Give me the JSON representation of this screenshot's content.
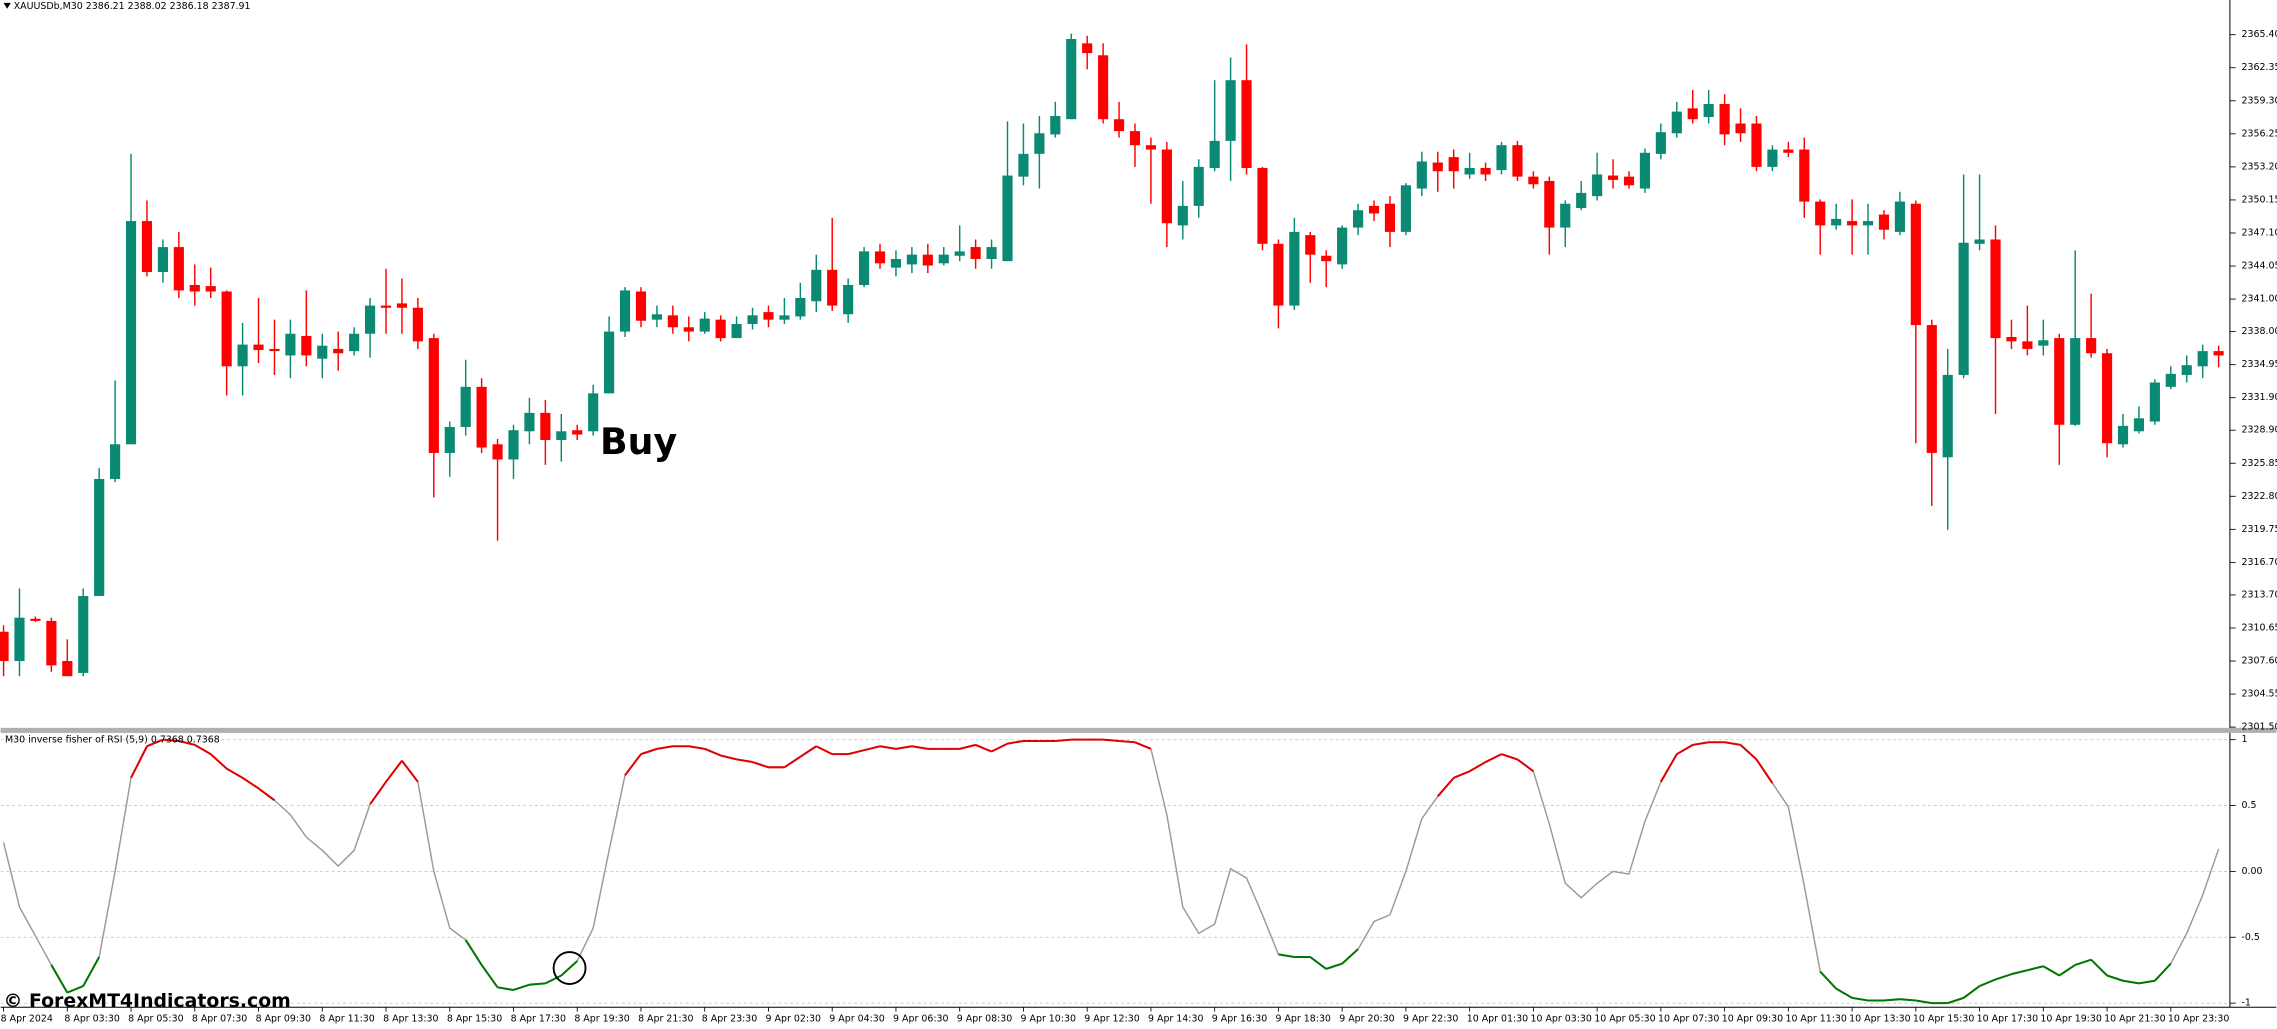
{
  "chart_data": [
    {
      "type": "candlestick",
      "title": "XAUUSDb,M30  2386.21 2388.02 2386.18 2387.91",
      "annotation": "Buy",
      "up_color": "#0a8a72",
      "down_color": "#ff0000",
      "categories": [
        "8 Apr 2024",
        null,
        null,
        null,
        "8 Apr 03:30",
        null,
        null,
        null,
        "8 Apr 05:30",
        null,
        null,
        null,
        "8 Apr 07:30",
        null,
        null,
        null,
        "8 Apr 09:30",
        null,
        null,
        null,
        "8 Apr 11:30",
        null,
        null,
        null,
        "8 Apr 13:30",
        null,
        null,
        null,
        "8 Apr 15:30",
        null,
        null,
        null,
        "8 Apr 17:30",
        null,
        null,
        null,
        "8 Apr 19:30",
        null,
        null,
        null,
        "8 Apr 21:30",
        null,
        null,
        null,
        "8 Apr 23:30",
        null,
        null,
        null,
        "9 Apr 02:30",
        null,
        null,
        null,
        "9 Apr 04:30",
        null,
        null,
        null,
        "9 Apr 06:30",
        null,
        null,
        null,
        "9 Apr 08:30",
        null,
        null,
        null,
        "9 Apr 10:30",
        null,
        null,
        null,
        "9 Apr 12:30",
        null,
        null,
        null,
        "9 Apr 14:30",
        null,
        null,
        null,
        "9 Apr 16:30",
        null,
        null,
        null,
        "9 Apr 18:30",
        null,
        null,
        null,
        "9 Apr 20:30",
        null,
        null,
        null,
        "9 Apr 22:30",
        null,
        null,
        null,
        "10 Apr 01:30",
        null,
        null,
        null,
        "10 Apr 03:30",
        null,
        null,
        null,
        "10 Apr 05:30",
        null,
        null,
        null,
        "10 Apr 07:30",
        null,
        null,
        null,
        "10 Apr 09:30",
        null,
        null,
        null,
        "10 Apr 11:30",
        null,
        null,
        null,
        "10 Apr 13:30",
        null,
        null,
        null,
        "10 Apr 15:30",
        null,
        null,
        null,
        "10 Apr 17:30",
        null,
        null,
        null,
        "10 Apr 19:30",
        null,
        null,
        null,
        "10 Apr 21:30",
        null,
        null,
        null,
        "10 Apr 23:30",
        null,
        null,
        null
      ],
      "open": [
        2310.3,
        2307.6,
        2311.5,
        2311.3,
        2307.6,
        2306.5,
        2313.6,
        2324.4,
        2327.6,
        2348.2,
        2343.5,
        2345.8,
        2342.3,
        2342.2,
        2341.7,
        2334.8,
        2336.8,
        2336.4,
        2335.8,
        2337.6,
        2335.5,
        2336.4,
        2336.2,
        2337.8,
        2340.4,
        2340.6,
        2340.2,
        2337.4,
        2326.8,
        2329.2,
        2332.9,
        2327.6,
        2326.2,
        2328.8,
        2330.5,
        2328.0,
        2328.9,
        2328.8,
        2332.3,
        2338.0,
        2341.7,
        2339.1,
        2339.5,
        2338.4,
        2338.0,
        2339.1,
        2337.4,
        2338.7,
        2339.8,
        2339.1,
        2339.4,
        2340.8,
        2343.7,
        2339.6,
        2342.3,
        2345.4,
        2343.9,
        2344.2,
        2345.1,
        2344.3,
        2345.0,
        2345.8,
        2344.7,
        2344.5,
        2352.3,
        2354.4,
        2356.2,
        2357.6,
        2364.6,
        2363.5,
        2357.6,
        2356.5,
        2355.2,
        2354.8,
        2347.8,
        2349.6,
        2353.1,
        2355.6,
        2361.2,
        2353.1,
        2346.1,
        2340.4,
        2346.9,
        2345.0,
        2344.2,
        2347.6,
        2349.6,
        2349.8,
        2347.2,
        2351.2,
        2353.6,
        2354.1,
        2352.5,
        2353.1,
        2352.9,
        2355.2,
        2352.3,
        2351.9,
        2347.6,
        2349.4,
        2350.5,
        2352.4,
        2352.3,
        2351.2,
        2354.4,
        2356.3,
        2358.6,
        2357.8,
        2359.0,
        2357.2,
        2357.2,
        2353.2,
        2354.8,
        2354.8,
        2350.0,
        2347.8,
        2348.2,
        2347.8,
        2348.8,
        2347.2,
        2349.8,
        2338.6,
        2326.4,
        2334.0,
        2346.1,
        2346.5,
        2337.5,
        2337.1,
        2336.7,
        2337.4,
        2329.4,
        2337.4,
        2336.0,
        2327.6,
        2328.8,
        2329.7,
        2332.9,
        2334.0,
        2334.8,
        2336.2
      ],
      "high": [
        2310.9,
        2314.3,
        2311.7,
        2311.6,
        2309.6,
        2314.3,
        2325.4,
        2333.5,
        2354.4,
        2350.1,
        2346.5,
        2347.2,
        2344.2,
        2343.9,
        2341.8,
        2338.8,
        2341.1,
        2339.1,
        2339.1,
        2341.8,
        2337.8,
        2338.0,
        2338.4,
        2341.1,
        2343.8,
        2342.9,
        2341.1,
        2337.8,
        2329.7,
        2335.4,
        2333.7,
        2328.1,
        2329.4,
        2331.9,
        2331.7,
        2330.4,
        2329.4,
        2333.1,
        2339.4,
        2342.1,
        2342.1,
        2340.4,
        2340.4,
        2339.4,
        2339.8,
        2339.5,
        2339.4,
        2340.2,
        2340.4,
        2341.1,
        2342.5,
        2345.1,
        2348.5,
        2342.9,
        2345.8,
        2346.1,
        2345.5,
        2345.8,
        2346.1,
        2345.8,
        2347.8,
        2346.5,
        2346.5,
        2357.4,
        2357.2,
        2357.9,
        2359.2,
        2365.5,
        2365.3,
        2364.6,
        2359.2,
        2357.2,
        2355.9,
        2355.5,
        2351.9,
        2353.9,
        2361.2,
        2363.3,
        2364.5,
        2353.2,
        2346.5,
        2348.5,
        2347.2,
        2345.5,
        2347.8,
        2349.8,
        2350.1,
        2350.5,
        2351.7,
        2354.6,
        2354.6,
        2354.8,
        2354.5,
        2353.6,
        2355.5,
        2355.6,
        2352.8,
        2352.3,
        2350.1,
        2351.9,
        2354.5,
        2353.9,
        2352.8,
        2354.9,
        2357.2,
        2359.2,
        2360.3,
        2360.3,
        2359.9,
        2358.6,
        2357.9,
        2355.2,
        2355.5,
        2355.9,
        2350.2,
        2349.8,
        2350.2,
        2349.8,
        2349.2,
        2350.9,
        2350.1,
        2339.1,
        2336.4,
        2352.5,
        2352.5,
        2347.8,
        2339.1,
        2340.4,
        2339.1,
        2337.8,
        2345.5,
        2341.5,
        2336.4,
        2330.4,
        2331.1,
        2333.6,
        2334.8,
        2335.8,
        2336.8,
        2336.7
      ],
      "low": [
        2306.2,
        2306.2,
        2311.2,
        2306.6,
        2306.2,
        2306.2,
        2313.6,
        2324.1,
        2327.6,
        2343.1,
        2342.5,
        2341.1,
        2340.4,
        2341.1,
        2332.1,
        2332.1,
        2335.1,
        2334.0,
        2333.7,
        2334.8,
        2333.7,
        2334.4,
        2335.8,
        2335.6,
        2337.8,
        2337.8,
        2336.4,
        2322.7,
        2324.6,
        2328.4,
        2326.8,
        2318.7,
        2324.4,
        2327.6,
        2325.7,
        2326.0,
        2328.0,
        2328.4,
        2332.3,
        2337.5,
        2338.4,
        2338.4,
        2337.8,
        2337.1,
        2337.8,
        2337.1,
        2337.4,
        2338.2,
        2338.4,
        2338.7,
        2339.1,
        2339.8,
        2339.9,
        2338.8,
        2342.1,
        2343.8,
        2343.1,
        2343.4,
        2343.4,
        2344.1,
        2344.5,
        2343.8,
        2343.8,
        2344.5,
        2351.5,
        2351.2,
        2355.9,
        2357.6,
        2362.2,
        2357.2,
        2355.9,
        2353.2,
        2349.8,
        2345.8,
        2346.5,
        2348.5,
        2352.8,
        2351.9,
        2352.5,
        2345.5,
        2338.3,
        2340.0,
        2342.5,
        2342.1,
        2343.8,
        2346.9,
        2348.2,
        2345.8,
        2346.9,
        2350.5,
        2350.9,
        2351.2,
        2352.1,
        2351.9,
        2352.5,
        2351.9,
        2351.2,
        2345.1,
        2345.8,
        2349.2,
        2350.1,
        2351.2,
        2351.2,
        2350.8,
        2353.9,
        2355.9,
        2357.2,
        2357.2,
        2355.2,
        2355.5,
        2352.8,
        2352.8,
        2354.1,
        2348.5,
        2345.1,
        2347.4,
        2345.1,
        2345.1,
        2346.5,
        2346.9,
        2327.7,
        2321.9,
        2319.7,
        2333.7,
        2345.5,
        2330.4,
        2336.4,
        2335.8,
        2335.8,
        2325.7,
        2329.3,
        2335.6,
        2326.4,
        2327.3,
        2328.6,
        2329.4,
        2332.7,
        2333.3,
        2333.7,
        2334.7
      ],
      "close": [
        2307.6,
        2311.6,
        2311.3,
        2307.2,
        2306.2,
        2313.6,
        2324.4,
        2327.6,
        2348.2,
        2343.5,
        2345.8,
        2341.8,
        2341.7,
        2341.7,
        2334.8,
        2336.8,
        2336.3,
        2336.2,
        2337.8,
        2335.8,
        2336.7,
        2336.0,
        2337.8,
        2340.4,
        2340.2,
        2340.2,
        2337.1,
        2326.8,
        2329.2,
        2332.9,
        2327.3,
        2326.2,
        2328.9,
        2330.5,
        2328.0,
        2328.8,
        2328.5,
        2332.3,
        2338.0,
        2341.8,
        2339.0,
        2339.6,
        2338.4,
        2338.0,
        2339.2,
        2337.4,
        2338.7,
        2339.5,
        2339.1,
        2339.5,
        2341.1,
        2343.7,
        2340.4,
        2342.3,
        2345.4,
        2344.3,
        2344.7,
        2345.1,
        2344.1,
        2345.1,
        2345.4,
        2344.7,
        2345.8,
        2352.4,
        2354.4,
        2356.3,
        2357.9,
        2365.0,
        2363.7,
        2357.6,
        2356.5,
        2355.2,
        2354.8,
        2348.0,
        2349.6,
        2353.2,
        2355.6,
        2361.2,
        2353.1,
        2346.1,
        2340.4,
        2347.2,
        2345.1,
        2344.5,
        2347.6,
        2349.2,
        2348.9,
        2347.2,
        2351.5,
        2353.7,
        2352.8,
        2352.8,
        2353.1,
        2352.5,
        2355.2,
        2352.3,
        2351.6,
        2347.6,
        2349.8,
        2350.8,
        2352.5,
        2352.0,
        2351.5,
        2354.5,
        2356.4,
        2358.3,
        2357.6,
        2359.0,
        2356.2,
        2356.3,
        2353.2,
        2354.8,
        2354.5,
        2350.0,
        2347.8,
        2348.4,
        2347.8,
        2348.2,
        2347.4,
        2350.0,
        2338.6,
        2326.8,
        2334.0,
        2346.2,
        2346.5,
        2337.4,
        2337.1,
        2336.4,
        2337.2,
        2329.4,
        2337.4,
        2336.0,
        2327.7,
        2329.3,
        2330.0,
        2333.3,
        2334.1,
        2334.9,
        2336.2,
        2335.8
      ],
      "ylim": [
        2301.5,
        2368.6
      ],
      "yticks": [
        {
          "value": 2365.4,
          "label": "2365.40"
        },
        {
          "value": 2362.35,
          "label": "2362.35"
        },
        {
          "value": 2359.3,
          "label": "2359.30"
        },
        {
          "value": 2356.25,
          "label": "2356.25"
        },
        {
          "value": 2353.2,
          "label": "2353.20"
        },
        {
          "value": 2350.15,
          "label": "2350.15"
        },
        {
          "value": 2347.1,
          "label": "2347.10"
        },
        {
          "value": 2344.05,
          "label": "2344.05"
        },
        {
          "value": 2341.0,
          "label": "2341.00"
        },
        {
          "value": 2338.0,
          "label": "2338.00"
        },
        {
          "value": 2334.95,
          "label": "2334.95"
        },
        {
          "value": 2331.9,
          "label": "2331.90"
        },
        {
          "value": 2328.9,
          "label": "2328.90"
        },
        {
          "value": 2325.85,
          "label": "2325.85"
        },
        {
          "value": 2322.8,
          "label": "2322.80"
        },
        {
          "value": 2319.75,
          "label": "2319.75"
        },
        {
          "value": 2316.7,
          "label": "2316.70"
        },
        {
          "value": 2313.7,
          "label": "2313.70"
        },
        {
          "value": 2310.65,
          "label": "2310.65"
        },
        {
          "value": 2307.6,
          "label": "2307.60"
        },
        {
          "value": 2304.55,
          "label": "2304.55"
        },
        {
          "value": 2301.5,
          "label": "2301.50"
        }
      ]
    },
    {
      "type": "line",
      "title": "M30 inverse fisher of RSI (5,9) 0.7368 0.7368",
      "values": [
        0.22,
        -0.27,
        -0.49,
        -0.71,
        -0.92,
        -0.87,
        -0.65,
        0,
        0.71,
        0.95,
        1.0,
        0.99,
        0.96,
        0.89,
        0.78,
        0.71,
        0.63,
        0.54,
        0.43,
        0.26,
        0.16,
        0.04,
        0.16,
        0.51,
        0.68,
        0.84,
        0.68,
        0,
        -0.43,
        -0.52,
        -0.71,
        -0.88,
        -0.9,
        -0.86,
        -0.85,
        -0.79,
        -0.68,
        -0.43,
        0.16,
        0.73,
        0.89,
        0.93,
        0.95,
        0.95,
        0.93,
        0.88,
        0.85,
        0.83,
        0.79,
        0.79,
        0.87,
        0.95,
        0.89,
        0.89,
        0.92,
        0.95,
        0.93,
        0.95,
        0.93,
        0.93,
        0.93,
        0.96,
        0.91,
        0.97,
        0.99,
        0.99,
        0.99,
        1.0,
        1.0,
        1.0,
        0.99,
        0.98,
        0.93,
        0.43,
        -0.27,
        -0.47,
        -0.4,
        0.02,
        -0.05,
        -0.33,
        -0.63,
        -0.65,
        -0.65,
        -0.74,
        -0.7,
        -0.59,
        -0.38,
        -0.33,
        0,
        0.4,
        0.57,
        0.71,
        0.76,
        0.83,
        0.89,
        0.85,
        0.76,
        0.36,
        -0.09,
        -0.2,
        -0.09,
        0,
        -0.02,
        0.38,
        0.68,
        0.89,
        0.96,
        0.98,
        0.98,
        0.96,
        0.85,
        0.67,
        0.49,
        -0.11,
        -0.76,
        -0.89,
        -0.96,
        -0.98,
        -0.98,
        -0.97,
        -0.98,
        -1.0,
        -1.0,
        -0.96,
        -0.87,
        -0.82,
        -0.78,
        -0.75,
        -0.72,
        -0.79,
        -0.71,
        -0.67,
        -0.79,
        -0.83,
        -0.85,
        -0.83,
        -0.7,
        -0.47,
        -0.18,
        0.17
      ],
      "color": "#999999",
      "upper_color": "#e00000",
      "lower_color": "#007700",
      "signal_levels": [
        0.5,
        -0.5
      ],
      "ylim": [
        -1.02,
        1.04
      ],
      "yticks": [
        1,
        0.5,
        {
          "value": 0,
          "label": "0.00"
        },
        -0.5,
        -1
      ],
      "grid": true
    }
  ],
  "watermark": "© ForexMT4Indicators.com"
}
